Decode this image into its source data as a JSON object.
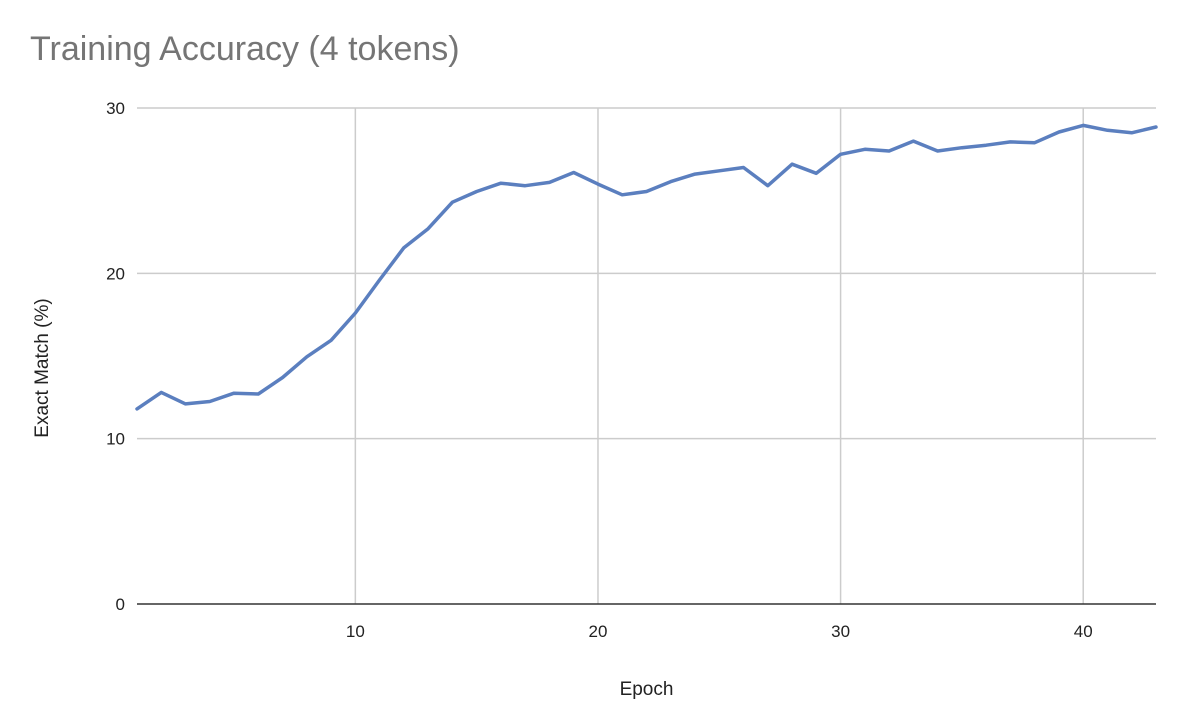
{
  "chart_data": {
    "type": "line",
    "title": "Training Accuracy (4 tokens)",
    "xlabel": "Epoch",
    "ylabel": "Exact Match (%)",
    "xlim": [
      1,
      43
    ],
    "ylim": [
      0,
      30
    ],
    "xticks": [
      10,
      20,
      30,
      40
    ],
    "yticks": [
      0,
      10,
      20,
      30
    ],
    "grid": true,
    "legend": "none",
    "series": [
      {
        "color": "#5b7fbf",
        "x": [
          1,
          2,
          3,
          4,
          5,
          6,
          7,
          8,
          9,
          10,
          11,
          12,
          13,
          14,
          15,
          16,
          17,
          18,
          19,
          20,
          21,
          22,
          23,
          24,
          25,
          26,
          27,
          28,
          29,
          30,
          31,
          32,
          33,
          34,
          35,
          36,
          37,
          38,
          39,
          40,
          41,
          42,
          43
        ],
        "y": [
          11.8,
          12.8,
          12.1,
          12.25,
          12.75,
          12.7,
          13.7,
          14.95,
          15.95,
          17.6,
          19.6,
          21.55,
          22.7,
          24.3,
          24.95,
          25.45,
          25.3,
          25.5,
          26.1,
          25.4,
          24.75,
          24.95,
          25.55,
          26.0,
          26.2,
          26.4,
          25.3,
          26.6,
          26.05,
          27.2,
          27.5,
          27.4,
          28.0,
          27.4,
          27.6,
          27.75,
          27.95,
          27.9,
          28.55,
          28.95,
          28.65,
          28.5,
          28.85
        ]
      }
    ]
  }
}
